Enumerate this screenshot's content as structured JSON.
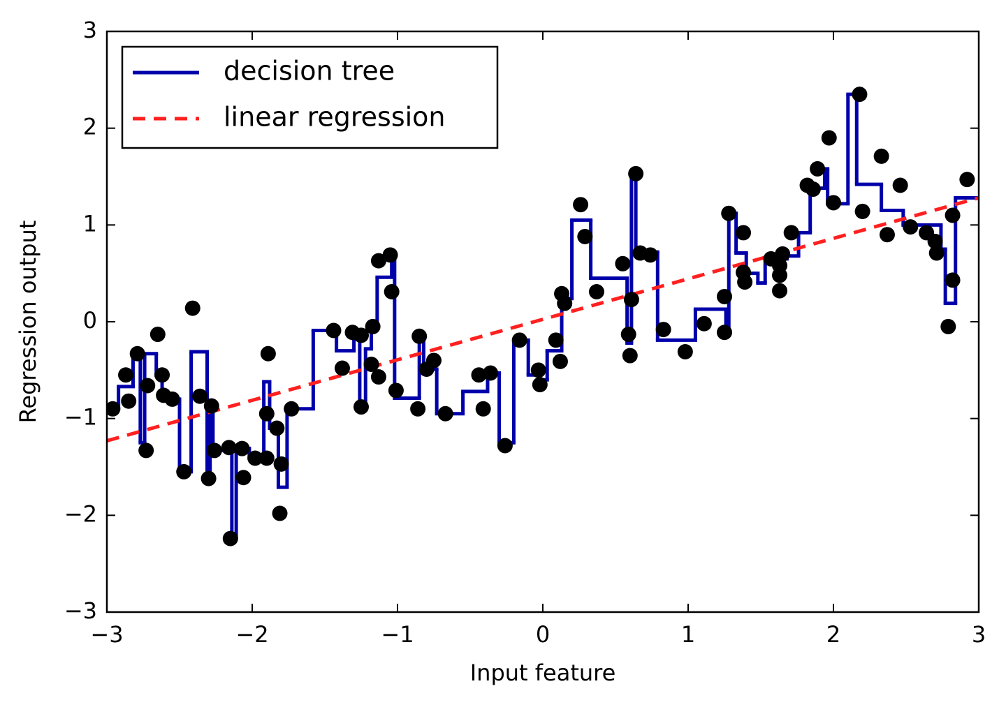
{
  "chart_data": {
    "type": "scatter-with-lines",
    "xlabel": "Input feature",
    "ylabel": "Regression output",
    "xlim": [
      -3,
      3
    ],
    "ylim": [
      -3,
      3
    ],
    "xticks": [
      {
        "value": -3,
        "label": "−3"
      },
      {
        "value": -2,
        "label": "−2"
      },
      {
        "value": -1,
        "label": "−1"
      },
      0,
      1,
      2,
      3
    ],
    "yticks": [
      {
        "value": -3,
        "label": "−3"
      },
      {
        "value": -2,
        "label": "−2"
      },
      {
        "value": -1,
        "label": "−1"
      },
      0,
      1,
      2,
      3
    ],
    "legend": "upper left",
    "series": [
      {
        "name": "decision tree",
        "color": "#0000aa",
        "style": "step",
        "x": [
          -3,
          -2.92,
          -2.82,
          -2.77,
          -2.74,
          -2.66,
          -2.62,
          -2.55,
          -2.5,
          -2.42,
          -2.31,
          -2.29,
          -2.27,
          -2.18,
          -2.14,
          -2.11,
          -2.02,
          -1.92,
          -1.88,
          -1.82,
          -1.76,
          -1.58,
          -1.42,
          -1.3,
          -1.26,
          -1.22,
          -1.18,
          -1.14,
          -1.04,
          -1.02,
          -0.85,
          -0.82,
          -0.73,
          -0.55,
          -0.38,
          -0.3,
          -0.2,
          -0.1,
          -0.02,
          0.03,
          0.13,
          0.2,
          0.33,
          0.58,
          0.61,
          0.64,
          0.79,
          1.05,
          1.26,
          1.28,
          1.33,
          1.4,
          1.48,
          1.53,
          1.68,
          1.76,
          1.84,
          1.94,
          1.96,
          2.1,
          2.16,
          2.33,
          2.48,
          2.74,
          2.77,
          2.84
        ],
        "values": [
          -0.9,
          -0.67,
          -0.33,
          -1.25,
          -0.33,
          -0.55,
          -0.78,
          -0.8,
          -1.55,
          -0.31,
          -1.62,
          -0.87,
          -1.33,
          -1.3,
          -2.24,
          -1.31,
          -1.41,
          -0.62,
          -1.1,
          -1.71,
          -0.9,
          -0.09,
          -0.3,
          -0.11,
          -0.88,
          -0.28,
          -0.05,
          0.46,
          0.66,
          -0.79,
          -0.15,
          -0.49,
          -0.95,
          -0.72,
          -0.53,
          -1.25,
          -0.19,
          -0.55,
          -0.6,
          -0.3,
          0.24,
          1.05,
          0.45,
          -0.22,
          1.53,
          0.72,
          -0.19,
          0.13,
          -0.11,
          1.12,
          0.71,
          0.5,
          0.4,
          0.65,
          0.68,
          0.92,
          1.38,
          1.58,
          1.22,
          2.35,
          1.42,
          1.15,
          1.0,
          0.75,
          0.19,
          1.28
        ]
      },
      {
        "name": "linear regression",
        "color": "#ff2020",
        "style": "dashed",
        "x": [
          -3,
          3
        ],
        "values": [
          -1.23,
          1.28
        ]
      }
    ],
    "points": {
      "color": "#000000",
      "x": [
        -2.96,
        -2.87,
        -2.85,
        -2.79,
        -2.73,
        -2.72,
        -2.65,
        -2.62,
        -2.61,
        -2.55,
        -2.47,
        -2.41,
        -2.36,
        -2.3,
        -2.28,
        -2.26,
        -2.16,
        -2.15,
        -2.07,
        -2.06,
        -1.98,
        -1.9,
        -1.9,
        -1.89,
        -1.83,
        -1.81,
        -1.8,
        -1.73,
        -1.44,
        -1.38,
        -1.31,
        -1.25,
        -1.25,
        -1.18,
        -1.17,
        -1.13,
        -1.13,
        -1.05,
        -1.04,
        -1.01,
        -0.86,
        -0.85,
        -0.8,
        -0.75,
        -0.67,
        -0.44,
        -0.41,
        -0.36,
        -0.26,
        -0.16,
        -0.03,
        -0.02,
        0.09,
        0.12,
        0.13,
        0.15,
        0.26,
        0.29,
        0.37,
        0.55,
        0.59,
        0.6,
        0.61,
        0.64,
        0.67,
        0.74,
        0.83,
        0.98,
        1.11,
        1.25,
        1.25,
        1.28,
        1.38,
        1.38,
        1.39,
        1.57,
        1.63,
        1.63,
        1.63,
        1.65,
        1.71,
        1.82,
        1.86,
        1.89,
        1.97,
        2.0,
        2.18,
        2.2,
        2.33,
        2.37,
        2.46,
        2.53,
        2.64,
        2.7,
        2.71,
        2.79,
        2.82,
        2.82,
        2.92
      ],
      "values": [
        -0.9,
        -0.55,
        -0.82,
        -0.33,
        -1.33,
        -0.66,
        -0.13,
        -0.55,
        -0.76,
        -0.8,
        -1.55,
        0.14,
        -0.77,
        -1.62,
        -0.87,
        -1.33,
        -1.3,
        -2.24,
        -1.31,
        -1.61,
        -1.41,
        -1.41,
        -0.95,
        -0.33,
        -1.1,
        -1.98,
        -1.47,
        -0.9,
        -0.09,
        -0.48,
        -0.11,
        -0.88,
        -0.14,
        -0.44,
        -0.05,
        -0.57,
        0.63,
        0.69,
        0.31,
        -0.71,
        -0.9,
        -0.15,
        -0.49,
        -0.4,
        -0.95,
        -0.55,
        -0.9,
        -0.53,
        -1.28,
        -0.19,
        -0.5,
        -0.65,
        -0.19,
        -0.41,
        0.29,
        0.19,
        1.21,
        0.88,
        0.31,
        0.6,
        -0.13,
        -0.35,
        0.23,
        1.53,
        0.71,
        0.69,
        -0.08,
        -0.31,
        -0.02,
        0.26,
        -0.11,
        1.12,
        0.92,
        0.51,
        0.41,
        0.65,
        0.48,
        0.58,
        0.32,
        0.7,
        0.92,
        1.41,
        1.37,
        1.58,
        1.9,
        1.23,
        2.35,
        1.14,
        1.71,
        0.9,
        1.41,
        0.98,
        0.92,
        0.83,
        0.71,
        -0.05,
        0.43,
        1.1,
        1.47
      ]
    }
  }
}
